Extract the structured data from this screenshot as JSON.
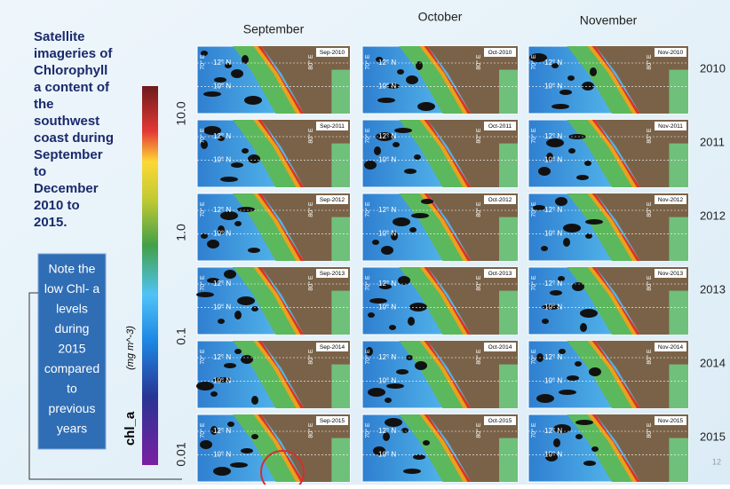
{
  "slide": {
    "description_lines": [
      "Satellite",
      "imageries of",
      "Chlorophyll",
      "a content of",
      "the",
      "southwest",
      "coast during",
      "September",
      "to",
      "December",
      "2010 to",
      "2015."
    ],
    "note_lines": [
      "Note the",
      "low Chl- a",
      "levels",
      "during",
      "2015",
      "compared",
      "to",
      "previous",
      "years"
    ],
    "page_number": "12"
  },
  "colorbar": {
    "label": "chl_a",
    "unit": "(mg m^-3)",
    "ticks": [
      "10.0",
      "1.0",
      "0.1",
      "0.01"
    ]
  },
  "columns": [
    "September",
    "October",
    "November"
  ],
  "rows": [
    {
      "year": "2010",
      "panels": [
        "Sep-2010",
        "Oct-2010",
        "Nov-2010"
      ]
    },
    {
      "year": "2011",
      "panels": [
        "Sep-2011",
        "Oct-2011",
        "Nov-2011"
      ]
    },
    {
      "year": "2012",
      "panels": [
        "Sep-2012",
        "Oct-2012",
        "Nov-2012"
      ]
    },
    {
      "year": "2013",
      "panels": [
        "Sep-2013",
        "Oct-2013",
        "Nov-2013"
      ]
    },
    {
      "year": "2014",
      "panels": [
        "Sep-2014",
        "Oct-2014",
        "Nov-2014"
      ]
    },
    {
      "year": "2015",
      "panels": [
        "Sep-2015",
        "Oct-2015",
        "Nov-2015"
      ]
    }
  ],
  "map_labels": {
    "lat_north": "12° N",
    "lat_south": "10° N",
    "lon_left": "70° E",
    "lon_right": "80° E"
  }
}
